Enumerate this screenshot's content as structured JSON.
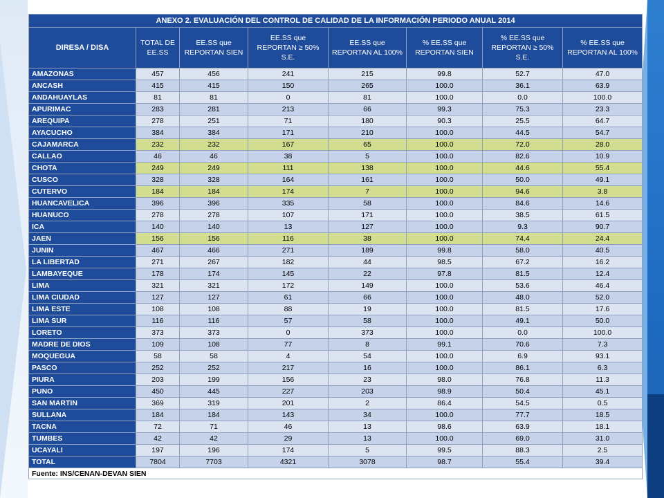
{
  "title": "ANEXO 2. EVALUACIÓN DEL CONTROL DE CALIDAD DE LA INFORMACIÓN PERIODO ANUAL 2014",
  "headers": [
    "DIRESA / DISA",
    "TOTAL DE EE.SS",
    "EE.SS que REPORTAN SIEN",
    "EE.SS que REPORTAN ≥ 50% S.E.",
    "EE.SS que REPORTAN AL 100%",
    "% EE.SS que REPORTAN SIEN",
    "% EE.SS que REPORTAN ≥ 50% S.E.",
    "% EE.SS que REPORTAN AL 100%"
  ],
  "rows": [
    [
      "AMAZONAS",
      "457",
      "456",
      "241",
      "215",
      "99.8",
      "52.7",
      "47.0"
    ],
    [
      "ANCASH",
      "415",
      "415",
      "150",
      "265",
      "100.0",
      "36.1",
      "63.9"
    ],
    [
      "ANDAHUAYLAS",
      "81",
      "81",
      "0",
      "81",
      "100.0",
      "0.0",
      "100.0"
    ],
    [
      "APURIMAC",
      "283",
      "281",
      "213",
      "66",
      "99.3",
      "75.3",
      "23.3"
    ],
    [
      "AREQUIPA",
      "278",
      "251",
      "71",
      "180",
      "90.3",
      "25.5",
      "64.7"
    ],
    [
      "AYACUCHO",
      "384",
      "384",
      "171",
      "210",
      "100.0",
      "44.5",
      "54.7"
    ],
    [
      "CAJAMARCA",
      "232",
      "232",
      "167",
      "65",
      "100.0",
      "72.0",
      "28.0"
    ],
    [
      "CALLAO",
      "46",
      "46",
      "38",
      "5",
      "100.0",
      "82.6",
      "10.9"
    ],
    [
      "CHOTA",
      "249",
      "249",
      "111",
      "138",
      "100.0",
      "44.6",
      "55.4"
    ],
    [
      "CUSCO",
      "328",
      "328",
      "164",
      "161",
      "100.0",
      "50.0",
      "49.1"
    ],
    [
      "CUTERVO",
      "184",
      "184",
      "174",
      "7",
      "100.0",
      "94.6",
      "3.8"
    ],
    [
      "HUANCAVELICA",
      "396",
      "396",
      "335",
      "58",
      "100.0",
      "84.6",
      "14.6"
    ],
    [
      "HUANUCO",
      "278",
      "278",
      "107",
      "171",
      "100.0",
      "38.5",
      "61.5"
    ],
    [
      "ICA",
      "140",
      "140",
      "13",
      "127",
      "100.0",
      "9.3",
      "90.7"
    ],
    [
      "JAEN",
      "156",
      "156",
      "116",
      "38",
      "100.0",
      "74.4",
      "24.4"
    ],
    [
      "JUNIN",
      "467",
      "466",
      "271",
      "189",
      "99.8",
      "58.0",
      "40.5"
    ],
    [
      "LA LIBERTAD",
      "271",
      "267",
      "182",
      "44",
      "98.5",
      "67.2",
      "16.2"
    ],
    [
      "LAMBAYEQUE",
      "178",
      "174",
      "145",
      "22",
      "97.8",
      "81.5",
      "12.4"
    ],
    [
      "LIMA",
      "321",
      "321",
      "172",
      "149",
      "100.0",
      "53.6",
      "46.4"
    ],
    [
      "LIMA CIUDAD",
      "127",
      "127",
      "61",
      "66",
      "100.0",
      "48.0",
      "52.0"
    ],
    [
      "LIMA ESTE",
      "108",
      "108",
      "88",
      "19",
      "100.0",
      "81.5",
      "17.6"
    ],
    [
      "LIMA SUR",
      "116",
      "116",
      "57",
      "58",
      "100.0",
      "49.1",
      "50.0"
    ],
    [
      "LORETO",
      "373",
      "373",
      "0",
      "373",
      "100.0",
      "0.0",
      "100.0"
    ],
    [
      "MADRE DE DIOS",
      "109",
      "108",
      "77",
      "8",
      "99.1",
      "70.6",
      "7.3"
    ],
    [
      "MOQUEGUA",
      "58",
      "58",
      "4",
      "54",
      "100.0",
      "6.9",
      "93.1"
    ],
    [
      "PASCO",
      "252",
      "252",
      "217",
      "16",
      "100.0",
      "86.1",
      "6.3"
    ],
    [
      "PIURA",
      "203",
      "199",
      "156",
      "23",
      "98.0",
      "76.8",
      "11.3"
    ],
    [
      "PUNO",
      "450",
      "445",
      "227",
      "203",
      "98.9",
      "50.4",
      "45.1"
    ],
    [
      "SAN MARTIN",
      "369",
      "319",
      "201",
      "2",
      "86.4",
      "54.5",
      "0.5"
    ],
    [
      "SULLANA",
      "184",
      "184",
      "143",
      "34",
      "100.0",
      "77.7",
      "18.5"
    ],
    [
      "TACNA",
      "72",
      "71",
      "46",
      "13",
      "98.6",
      "63.9",
      "18.1"
    ],
    [
      "TUMBES",
      "42",
      "42",
      "29",
      "13",
      "100.0",
      "69.0",
      "31.0"
    ],
    [
      "UCAYALI",
      "197",
      "196",
      "174",
      "5",
      "99.5",
      "88.3",
      "2.5"
    ]
  ],
  "highlighted_rows": [
    "CAJAMARCA",
    "CHOTA",
    "CUTERVO",
    "JAEN"
  ],
  "total": [
    "TOTAL",
    "7804",
    "7703",
    "4321",
    "3078",
    "98.7",
    "55.4",
    "39.4"
  ],
  "source": "Fuente: INS/CENAN-DEVAN SIEN",
  "colors": {
    "header_bg": "#1f4c9a",
    "row_a": "#dce4f2",
    "row_b": "#c5d2ea",
    "highlight": "#d3dd8f",
    "accent_blue": "#1f6cc2"
  }
}
